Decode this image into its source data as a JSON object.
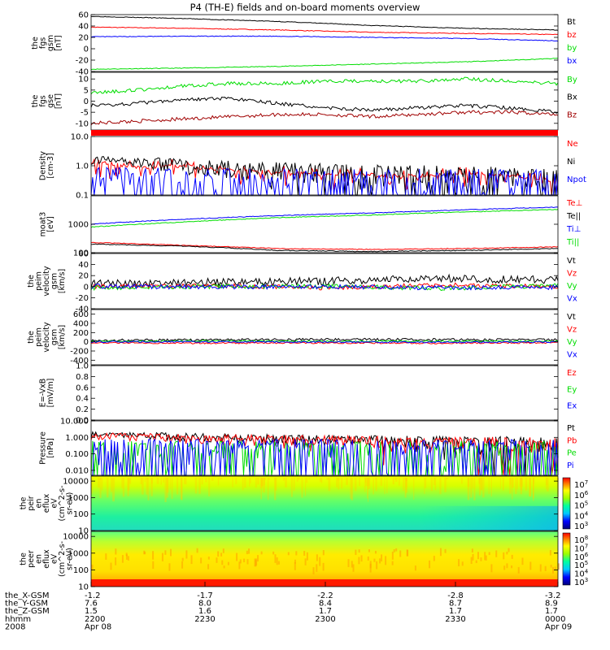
{
  "title": "P4 (TH-E) fields and on-board moments overview",
  "colors": {
    "black": "#000000",
    "red": "#ff0000",
    "green": "#00dd00",
    "blue": "#0000ff",
    "darkred": "#a00000",
    "lightgreen": "#33ee33"
  },
  "chart_data": [
    {
      "type": "line",
      "ylabel": [
        "the",
        "fgs",
        "gsm",
        "[nT]"
      ],
      "ylim": [
        -40,
        60
      ],
      "yticks": [
        "60",
        "40",
        "20",
        "0",
        "-20",
        "-40"
      ],
      "tick_values": [
        60,
        40,
        20,
        0,
        -20,
        -40
      ],
      "series": [
        {
          "name": "Bt",
          "color": "black",
          "x": [
            0,
            0.2,
            0.4,
            0.6,
            0.8,
            1.0
          ],
          "values": [
            57,
            53,
            48,
            41,
            36,
            33
          ]
        },
        {
          "name": "bz",
          "color": "red",
          "x": [
            0,
            0.2,
            0.4,
            0.6,
            0.8,
            1.0
          ],
          "values": [
            38,
            36,
            33,
            29,
            27,
            25
          ]
        },
        {
          "name": "by",
          "color": "green",
          "x": [
            0,
            0.2,
            0.4,
            0.6,
            0.8,
            1.0
          ],
          "values": [
            -36,
            -34,
            -31,
            -27,
            -23,
            -17
          ]
        },
        {
          "name": "bx",
          "color": "blue",
          "x": [
            0,
            0.2,
            0.4,
            0.6,
            0.8,
            1.0
          ],
          "values": [
            21,
            22,
            22,
            20,
            18,
            14
          ]
        }
      ]
    },
    {
      "type": "line",
      "ylabel": [
        "the",
        "fgs",
        "gse",
        "[nT]"
      ],
      "ylim": [
        -13,
        13
      ],
      "yticks": [
        "10",
        "5",
        "0",
        "-5",
        "-10"
      ],
      "tick_values": [
        10,
        5,
        0,
        -5,
        -10
      ],
      "series": [
        {
          "name": "By",
          "color": "green",
          "x": [
            0,
            0.1,
            0.2,
            0.3,
            0.4,
            0.5,
            0.6,
            0.7,
            0.8,
            0.9,
            1.0
          ],
          "values": [
            4,
            5,
            7,
            8,
            8,
            9,
            9,
            9,
            10,
            9,
            8
          ]
        },
        {
          "name": "Bx",
          "color": "black",
          "x": [
            0,
            0.1,
            0.2,
            0.3,
            0.4,
            0.5,
            0.6,
            0.7,
            0.8,
            0.9,
            1.0
          ],
          "values": [
            -2,
            -1,
            1,
            1,
            -1,
            -3,
            -4,
            -3,
            -2,
            -3,
            -5
          ]
        },
        {
          "name": "Bz",
          "color": "darkred",
          "x": [
            0,
            0.1,
            0.2,
            0.3,
            0.4,
            0.5,
            0.6,
            0.7,
            0.8,
            0.9,
            1.0
          ],
          "values": [
            -10,
            -9,
            -8,
            -7,
            -6,
            -6,
            -7,
            -6,
            -5,
            -5,
            -6
          ]
        }
      ]
    },
    {
      "type": "line",
      "ylabel": [
        "Density",
        "[cm-3]"
      ],
      "ylim": [
        0.1,
        10
      ],
      "log": true,
      "yticks": [
        "10.0",
        "1.0",
        "0.1"
      ],
      "tick_values": [
        10,
        1,
        0.1
      ],
      "series": [
        {
          "name": "Ne",
          "color": "red",
          "x": [
            0,
            0.1,
            0.2,
            0.3,
            0.4,
            0.5,
            0.6,
            0.7,
            0.8,
            0.9,
            1.0
          ],
          "values": [
            1.4,
            0.9,
            1.0,
            0.7,
            0.6,
            0.5,
            0.5,
            0.45,
            0.55,
            0.45,
            0.3
          ]
        },
        {
          "name": "Ni",
          "color": "black",
          "x": [
            0,
            0.1,
            0.2,
            0.3,
            0.4,
            0.5,
            0.6,
            0.7,
            0.8,
            0.9,
            1.0
          ],
          "values": [
            1.7,
            1.4,
            1.1,
            0.9,
            0.7,
            0.6,
            0.5,
            0.45,
            0.4,
            0.35,
            0.3
          ]
        },
        {
          "name": "Npot",
          "color": "blue",
          "x": [
            0,
            0.2,
            0.4,
            0.6,
            0.8,
            1.0
          ],
          "values": [
            0.28,
            0.24,
            0.22,
            0.2,
            0.18,
            0.16
          ]
        }
      ]
    },
    {
      "type": "line",
      "ylabel": [
        "moat3",
        "[eV]"
      ],
      "ylim": [
        100,
        10000
      ],
      "log": true,
      "yticks": [
        "1000",
        "100"
      ],
      "tick_values": [
        1000,
        100
      ],
      "series": [
        {
          "name": "Te⊥",
          "color": "red",
          "x": [
            0,
            0.2,
            0.4,
            0.6,
            0.8,
            1.0
          ],
          "values": [
            230,
            180,
            140,
            130,
            140,
            160
          ]
        },
        {
          "name": "Te||",
          "color": "black",
          "x": [
            0,
            0.2,
            0.4,
            0.6,
            0.8,
            1.0
          ],
          "values": [
            200,
            170,
            120,
            110,
            120,
            140
          ]
        },
        {
          "name": "Ti⊥",
          "color": "blue",
          "x": [
            0,
            0.2,
            0.4,
            0.6,
            0.8,
            1.0
          ],
          "values": [
            1000,
            1500,
            2000,
            2500,
            3200,
            4000
          ]
        },
        {
          "name": "Ti||",
          "color": "green",
          "x": [
            0,
            0.2,
            0.4,
            0.6,
            0.8,
            1.0
          ],
          "values": [
            800,
            1200,
            1700,
            2100,
            2700,
            3300
          ]
        }
      ]
    },
    {
      "type": "line",
      "ylabel": [
        "the",
        "peim",
        "velocity",
        "gsm",
        "[km/s]"
      ],
      "ylim": [
        -40,
        60
      ],
      "yticks": [
        "60",
        "40",
        "20",
        "0",
        "-20",
        "-40"
      ],
      "tick_values": [
        60,
        40,
        20,
        0,
        -20,
        -40
      ],
      "series": [
        {
          "name": "Vt",
          "color": "black",
          "x": [
            0,
            0.25,
            0.5,
            0.75,
            1.0
          ],
          "values": [
            5,
            8,
            10,
            15,
            12
          ]
        },
        {
          "name": "Vz",
          "color": "red",
          "x": [
            0,
            0.25,
            0.5,
            0.75,
            1.0
          ],
          "values": [
            0,
            2,
            -2,
            3,
            0
          ]
        },
        {
          "name": "Vy",
          "color": "green",
          "x": [
            0,
            0.25,
            0.5,
            0.75,
            1.0
          ],
          "values": [
            -2,
            0,
            1,
            -3,
            2
          ]
        },
        {
          "name": "Vx",
          "color": "blue",
          "x": [
            0,
            0.25,
            0.5,
            0.75,
            1.0
          ],
          "values": [
            1,
            -1,
            0,
            -2,
            -1
          ]
        }
      ]
    },
    {
      "type": "line",
      "ylabel": [
        "the",
        "peim",
        "velocity",
        "gsm",
        "[km/s]"
      ],
      "ylim": [
        -500,
        700
      ],
      "yticks": [
        "600",
        "400",
        "200",
        "0",
        "-200",
        "-400"
      ],
      "tick_values": [
        600,
        400,
        200,
        0,
        -200,
        -400
      ],
      "series": [
        {
          "name": "Vt",
          "color": "black",
          "x": [
            0,
            0.25,
            0.5,
            0.75,
            1.0
          ],
          "values": [
            30,
            40,
            50,
            45,
            40
          ]
        },
        {
          "name": "Vz",
          "color": "red",
          "x": [
            0,
            0.25,
            0.5,
            0.75,
            1.0
          ],
          "values": [
            -20,
            -30,
            -25,
            -30,
            -20
          ]
        },
        {
          "name": "Vy",
          "color": "green",
          "x": [
            0,
            0.25,
            0.5,
            0.75,
            1.0
          ],
          "values": [
            10,
            20,
            10,
            15,
            10
          ]
        },
        {
          "name": "Vx",
          "color": "blue",
          "x": [
            0,
            0.25,
            0.5,
            0.75,
            1.0
          ],
          "values": [
            0,
            0,
            -5,
            -10,
            -5
          ]
        }
      ]
    },
    {
      "type": "line",
      "ylabel": [
        "E=-VxB",
        "[mV/m]"
      ],
      "ylim": [
        0,
        1
      ],
      "yticks": [
        "1.0",
        "0.8",
        "0.6",
        "0.4",
        "0.2",
        "0.0"
      ],
      "tick_values": [
        1.0,
        0.8,
        0.6,
        0.4,
        0.2,
        0.0
      ],
      "series": [
        {
          "name": "Ez",
          "color": "red",
          "x": [],
          "values": []
        },
        {
          "name": "Ey",
          "color": "green",
          "x": [],
          "values": []
        },
        {
          "name": "Ex",
          "color": "blue",
          "x": [],
          "values": []
        }
      ]
    },
    {
      "type": "line",
      "ylabel": [
        "Pressure",
        "[nPa]"
      ],
      "ylim": [
        0.005,
        10
      ],
      "log": true,
      "yticks": [
        "10.000",
        "1.000",
        "0.100",
        "0.010"
      ],
      "tick_values": [
        10,
        1,
        0.1,
        0.01
      ],
      "series": [
        {
          "name": "Pt",
          "color": "black",
          "x": [
            0,
            0.2,
            0.4,
            0.6,
            0.8,
            1.0
          ],
          "values": [
            1.6,
            1.2,
            0.9,
            0.7,
            0.55,
            0.45
          ]
        },
        {
          "name": "Pb",
          "color": "red",
          "x": [
            0,
            0.2,
            0.4,
            0.6,
            0.8,
            1.0
          ],
          "values": [
            1.3,
            1.0,
            0.8,
            0.6,
            0.5,
            0.4
          ]
        },
        {
          "name": "Pe",
          "color": "green",
          "x": [
            0,
            0.2,
            0.4,
            0.6,
            0.8,
            1.0
          ],
          "values": [
            0.012,
            0.011,
            0.01,
            0.01,
            0.01,
            0.012
          ]
        },
        {
          "name": "Pi",
          "color": "blue",
          "x": [
            0,
            0.2,
            0.4,
            0.6,
            0.8,
            1.0
          ],
          "values": [
            0.19,
            0.17,
            0.15,
            0.14,
            0.13,
            0.12
          ]
        }
      ]
    },
    {
      "type": "heatmap",
      "ylabel": [
        "the",
        "peir",
        "en",
        "eflux",
        "eV",
        "(cm^2-s-",
        "sr-eV)"
      ],
      "ylim": [
        10,
        20000
      ],
      "log": true,
      "yticks": [
        "10000",
        "1000",
        "100",
        "10"
      ],
      "tick_values": [
        10000,
        1000,
        100,
        10
      ],
      "colorbar_ticks": [
        "10^7",
        "10^6",
        "10^5",
        "10^4",
        "10^3"
      ]
    },
    {
      "type": "heatmap",
      "ylabel": [
        "the",
        "peer",
        "en",
        "eflux",
        "eV",
        "(cm^2-s-",
        "sr-eV)"
      ],
      "ylim": [
        10,
        20000
      ],
      "log": true,
      "yticks": [
        "10000",
        "1000",
        "100",
        "10"
      ],
      "tick_values": [
        10000,
        1000,
        100,
        10
      ],
      "colorbar_ticks": [
        "10^8",
        "10^7",
        "10^6",
        "10^5",
        "10^4",
        "10^3"
      ]
    }
  ],
  "x_axis": {
    "rows": [
      {
        "label": "the_X-GSM",
        "values": [
          "-1.2",
          "-1.7",
          "-2.2",
          "-2.8",
          "-3.2"
        ]
      },
      {
        "label": "the_Y-GSM",
        "values": [
          "7.6",
          "8.0",
          "8.4",
          "8.7",
          "8.9"
        ]
      },
      {
        "label": "the_Z-GSM",
        "values": [
          "1.5",
          "1.6",
          "1.7",
          "1.7",
          "1.7"
        ]
      },
      {
        "label": "hhmm",
        "values": [
          "2200",
          "2230",
          "2300",
          "2330",
          "0000"
        ]
      },
      {
        "label": "2008",
        "values": [
          "Apr 08",
          "",
          "",
          "",
          "Apr 09"
        ]
      }
    ]
  }
}
